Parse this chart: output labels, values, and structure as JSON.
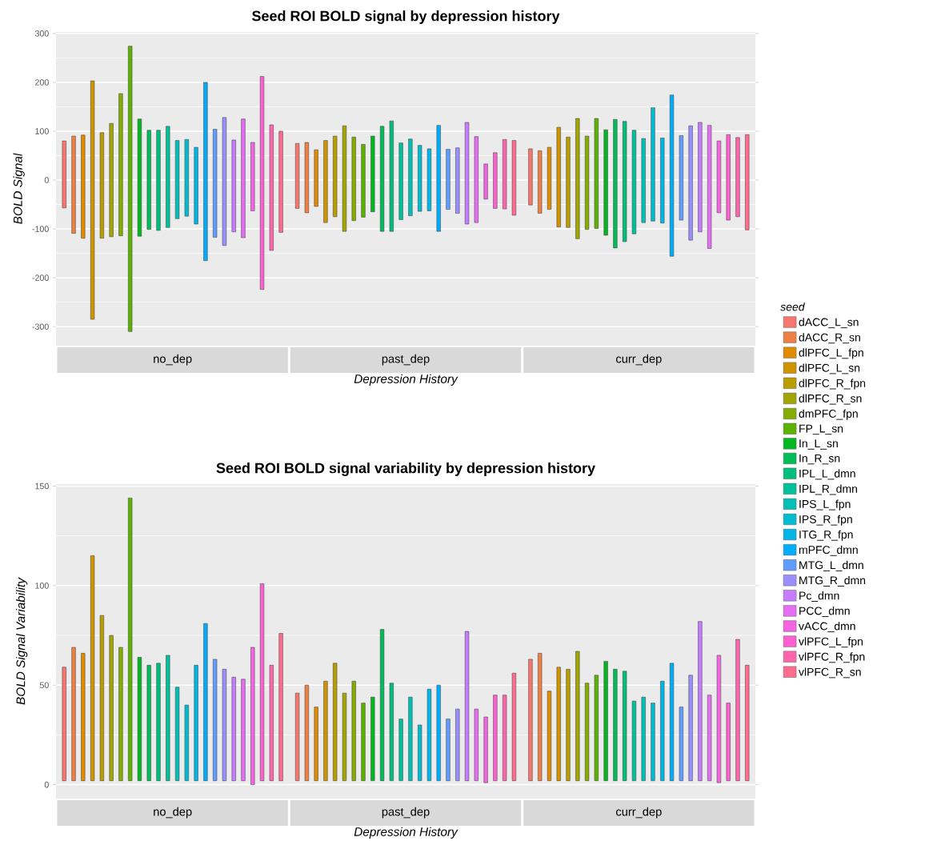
{
  "chart_data": [
    {
      "type": "bar",
      "title": "Seed ROI BOLD signal by depression history",
      "xlabel": "Depression History",
      "ylabel": "BOLD Signal",
      "categories": [
        "no_dep",
        "past_dep",
        "curr_dep"
      ],
      "ylim": [
        -339,
        303
      ],
      "yticks": [
        -300,
        -200,
        -100,
        0,
        100,
        200,
        300
      ],
      "grid": "y",
      "legend": "right",
      "legend_title": "seed",
      "series": [
        {
          "name": "dACC_L_sn",
          "color": "#F8766D",
          "values": [
            137,
            133,
            115
          ],
          "base": [
            -57,
            -58,
            -51
          ]
        },
        {
          "name": "dACC_R_sn",
          "color": "#EE8044",
          "values": [
            199,
            144,
            128
          ],
          "base": [
            -109,
            -67,
            -68
          ]
        },
        {
          "name": "dlPFC_L_fpn",
          "color": "#E08B00",
          "values": [
            211,
            116,
            127
          ],
          "base": [
            -119,
            -54,
            -60
          ]
        },
        {
          "name": "dlPFC_L_sn",
          "color": "#D09400",
          "values": [
            488,
            168,
            204
          ],
          "base": [
            -285,
            -87,
            -96
          ]
        },
        {
          "name": "dlPFC_R_fpn",
          "color": "#BA9E00",
          "values": [
            216,
            165,
            185
          ],
          "base": [
            -119,
            -75,
            -97
          ]
        },
        {
          "name": "dlPFC_R_sn",
          "color": "#A3A500",
          "values": [
            232,
            216,
            246
          ],
          "base": [
            -116,
            -105,
            -120
          ]
        },
        {
          "name": "dmPFC_fpn",
          "color": "#85AD00",
          "values": [
            291,
            171,
            191
          ],
          "base": [
            -114,
            -83,
            -101
          ]
        },
        {
          "name": "FP_L_sn",
          "color": "#5BB300",
          "values": [
            584,
            149,
            225
          ],
          "base": [
            -310,
            -76,
            -99
          ]
        },
        {
          "name": "In_L_sn",
          "color": "#00B81F",
          "values": [
            240,
            155,
            216
          ],
          "base": [
            -115,
            -65,
            -113
          ]
        },
        {
          "name": "In_R_sn",
          "color": "#00BC59",
          "values": [
            203,
            215,
            263
          ],
          "base": [
            -101,
            -105,
            -139
          ]
        },
        {
          "name": "IPL_L_dmn",
          "color": "#00BF7D",
          "values": [
            205,
            226,
            246
          ],
          "base": [
            -103,
            -105,
            -126
          ]
        },
        {
          "name": "IPL_R_dmn",
          "color": "#00C19C",
          "values": [
            207,
            157,
            212
          ],
          "base": [
            -97,
            -81,
            -110
          ]
        },
        {
          "name": "IPS_L_fpn",
          "color": "#00C0B8",
          "values": [
            160,
            157,
            172
          ],
          "base": [
            -79,
            -73,
            -87
          ]
        },
        {
          "name": "IPS_R_fpn",
          "color": "#00BCD1",
          "values": [
            157,
            135,
            232
          ],
          "base": [
            -74,
            -64,
            -84
          ]
        },
        {
          "name": "ITG_R_fpn",
          "color": "#00B6E7",
          "values": [
            157,
            127,
            174
          ],
          "base": [
            -90,
            -63,
            -88
          ]
        },
        {
          "name": "mPFC_dmn",
          "color": "#00ADFA",
          "values": [
            365,
            217,
            330
          ],
          "base": [
            -165,
            -105,
            -156
          ]
        },
        {
          "name": "MTG_L_dmn",
          "color": "#619CFF",
          "values": [
            221,
            123,
            173
          ],
          "base": [
            -117,
            -60,
            -82
          ]
        },
        {
          "name": "MTG_R_dmn",
          "color": "#9B8EFF",
          "values": [
            262,
            134,
            234
          ],
          "base": [
            -134,
            -68,
            -123
          ]
        },
        {
          "name": "Pc_dmn",
          "color": "#C77CFF",
          "values": [
            188,
            208,
            224
          ],
          "base": [
            -106,
            -90,
            -106
          ]
        },
        {
          "name": "PCC_dmn",
          "color": "#E56EF5",
          "values": [
            243,
            176,
            252
          ],
          "base": [
            -118,
            -87,
            -140
          ]
        },
        {
          "name": "vACC_dmn",
          "color": "#F564E3",
          "values": [
            140,
            72,
            147
          ],
          "base": [
            -63,
            -39,
            -67
          ]
        },
        {
          "name": "vlPFC_L_fpn",
          "color": "#FD61D1",
          "values": [
            436,
            114,
            175
          ],
          "base": [
            -224,
            -58,
            -82
          ]
        },
        {
          "name": "vlPFC_R_fpn",
          "color": "#FF65AC",
          "values": [
            257,
            142,
            162
          ],
          "base": [
            -144,
            -59,
            -75
          ]
        },
        {
          "name": "vlPFC_R_sn",
          "color": "#FF6C90",
          "values": [
            207,
            153,
            195
          ],
          "base": [
            -107,
            -72,
            -102
          ]
        }
      ]
    },
    {
      "type": "bar",
      "title": "Seed ROI BOLD signal variability by depression history",
      "xlabel": "Depression History",
      "ylabel": "BOLD Signal Variability",
      "categories": [
        "no_dep",
        "past_dep",
        "curr_dep"
      ],
      "ylim": [
        -7,
        151
      ],
      "yticks": [
        0,
        50,
        100,
        150
      ],
      "grid": "y",
      "series": [
        {
          "color": "#F8766D",
          "values": [
            57,
            44,
            61
          ],
          "base": [
            2,
            2,
            2
          ]
        },
        {
          "color": "#EE8044",
          "values": [
            67,
            48,
            64
          ],
          "base": [
            2,
            2,
            2
          ]
        },
        {
          "color": "#E08B00",
          "values": [
            64,
            37,
            45
          ],
          "base": [
            2,
            2,
            2
          ]
        },
        {
          "color": "#D09400",
          "values": [
            113,
            50,
            57
          ],
          "base": [
            2,
            2,
            2
          ]
        },
        {
          "color": "#BA9E00",
          "values": [
            83,
            59,
            56
          ],
          "base": [
            2,
            2,
            2
          ]
        },
        {
          "color": "#A3A500",
          "values": [
            73,
            44,
            65
          ],
          "base": [
            2,
            2,
            2
          ]
        },
        {
          "color": "#85AD00",
          "values": [
            67,
            50,
            49
          ],
          "base": [
            2,
            2,
            2
          ]
        },
        {
          "color": "#5BB300",
          "values": [
            142,
            39,
            53
          ],
          "base": [
            2,
            2,
            2
          ]
        },
        {
          "color": "#00B81F",
          "values": [
            62,
            42,
            60
          ],
          "base": [
            2,
            2,
            2
          ]
        },
        {
          "color": "#00BC59",
          "values": [
            58,
            76,
            56
          ],
          "base": [
            2,
            2,
            2
          ]
        },
        {
          "color": "#00BF7D",
          "values": [
            59,
            49,
            55
          ],
          "base": [
            2,
            2,
            2
          ]
        },
        {
          "color": "#00C19C",
          "values": [
            63,
            31,
            40
          ],
          "base": [
            2,
            2,
            2
          ]
        },
        {
          "color": "#00C0B8",
          "values": [
            47,
            42,
            42
          ],
          "base": [
            2,
            2,
            2
          ]
        },
        {
          "color": "#00BCD1",
          "values": [
            38,
            28,
            39
          ],
          "base": [
            2,
            2,
            2
          ]
        },
        {
          "color": "#00B6E7",
          "values": [
            58,
            46,
            50
          ],
          "base": [
            2,
            2,
            2
          ]
        },
        {
          "color": "#00ADFA",
          "values": [
            79,
            48,
            59
          ],
          "base": [
            2,
            2,
            2
          ]
        },
        {
          "color": "#619CFF",
          "values": [
            61,
            31,
            37
          ],
          "base": [
            2,
            2,
            2
          ]
        },
        {
          "color": "#9B8EFF",
          "values": [
            56,
            36,
            53
          ],
          "base": [
            2,
            2,
            2
          ]
        },
        {
          "color": "#C77CFF",
          "values": [
            52,
            75,
            80
          ],
          "base": [
            2,
            2,
            2
          ]
        },
        {
          "color": "#E56EF5",
          "values": [
            51,
            36,
            43
          ],
          "base": [
            2,
            2,
            2
          ]
        },
        {
          "color": "#F564E3",
          "values": [
            69,
            33,
            64
          ],
          "base": [
            0,
            1,
            1
          ]
        },
        {
          "color": "#FD61D1",
          "values": [
            99,
            43,
            39
          ],
          "base": [
            2,
            2,
            2
          ]
        },
        {
          "color": "#FF65AC",
          "values": [
            58,
            43,
            71
          ],
          "base": [
            2,
            2,
            2
          ]
        },
        {
          "color": "#FF6C90",
          "values": [
            74,
            54,
            58
          ],
          "base": [
            2,
            2,
            2
          ]
        }
      ]
    }
  ]
}
